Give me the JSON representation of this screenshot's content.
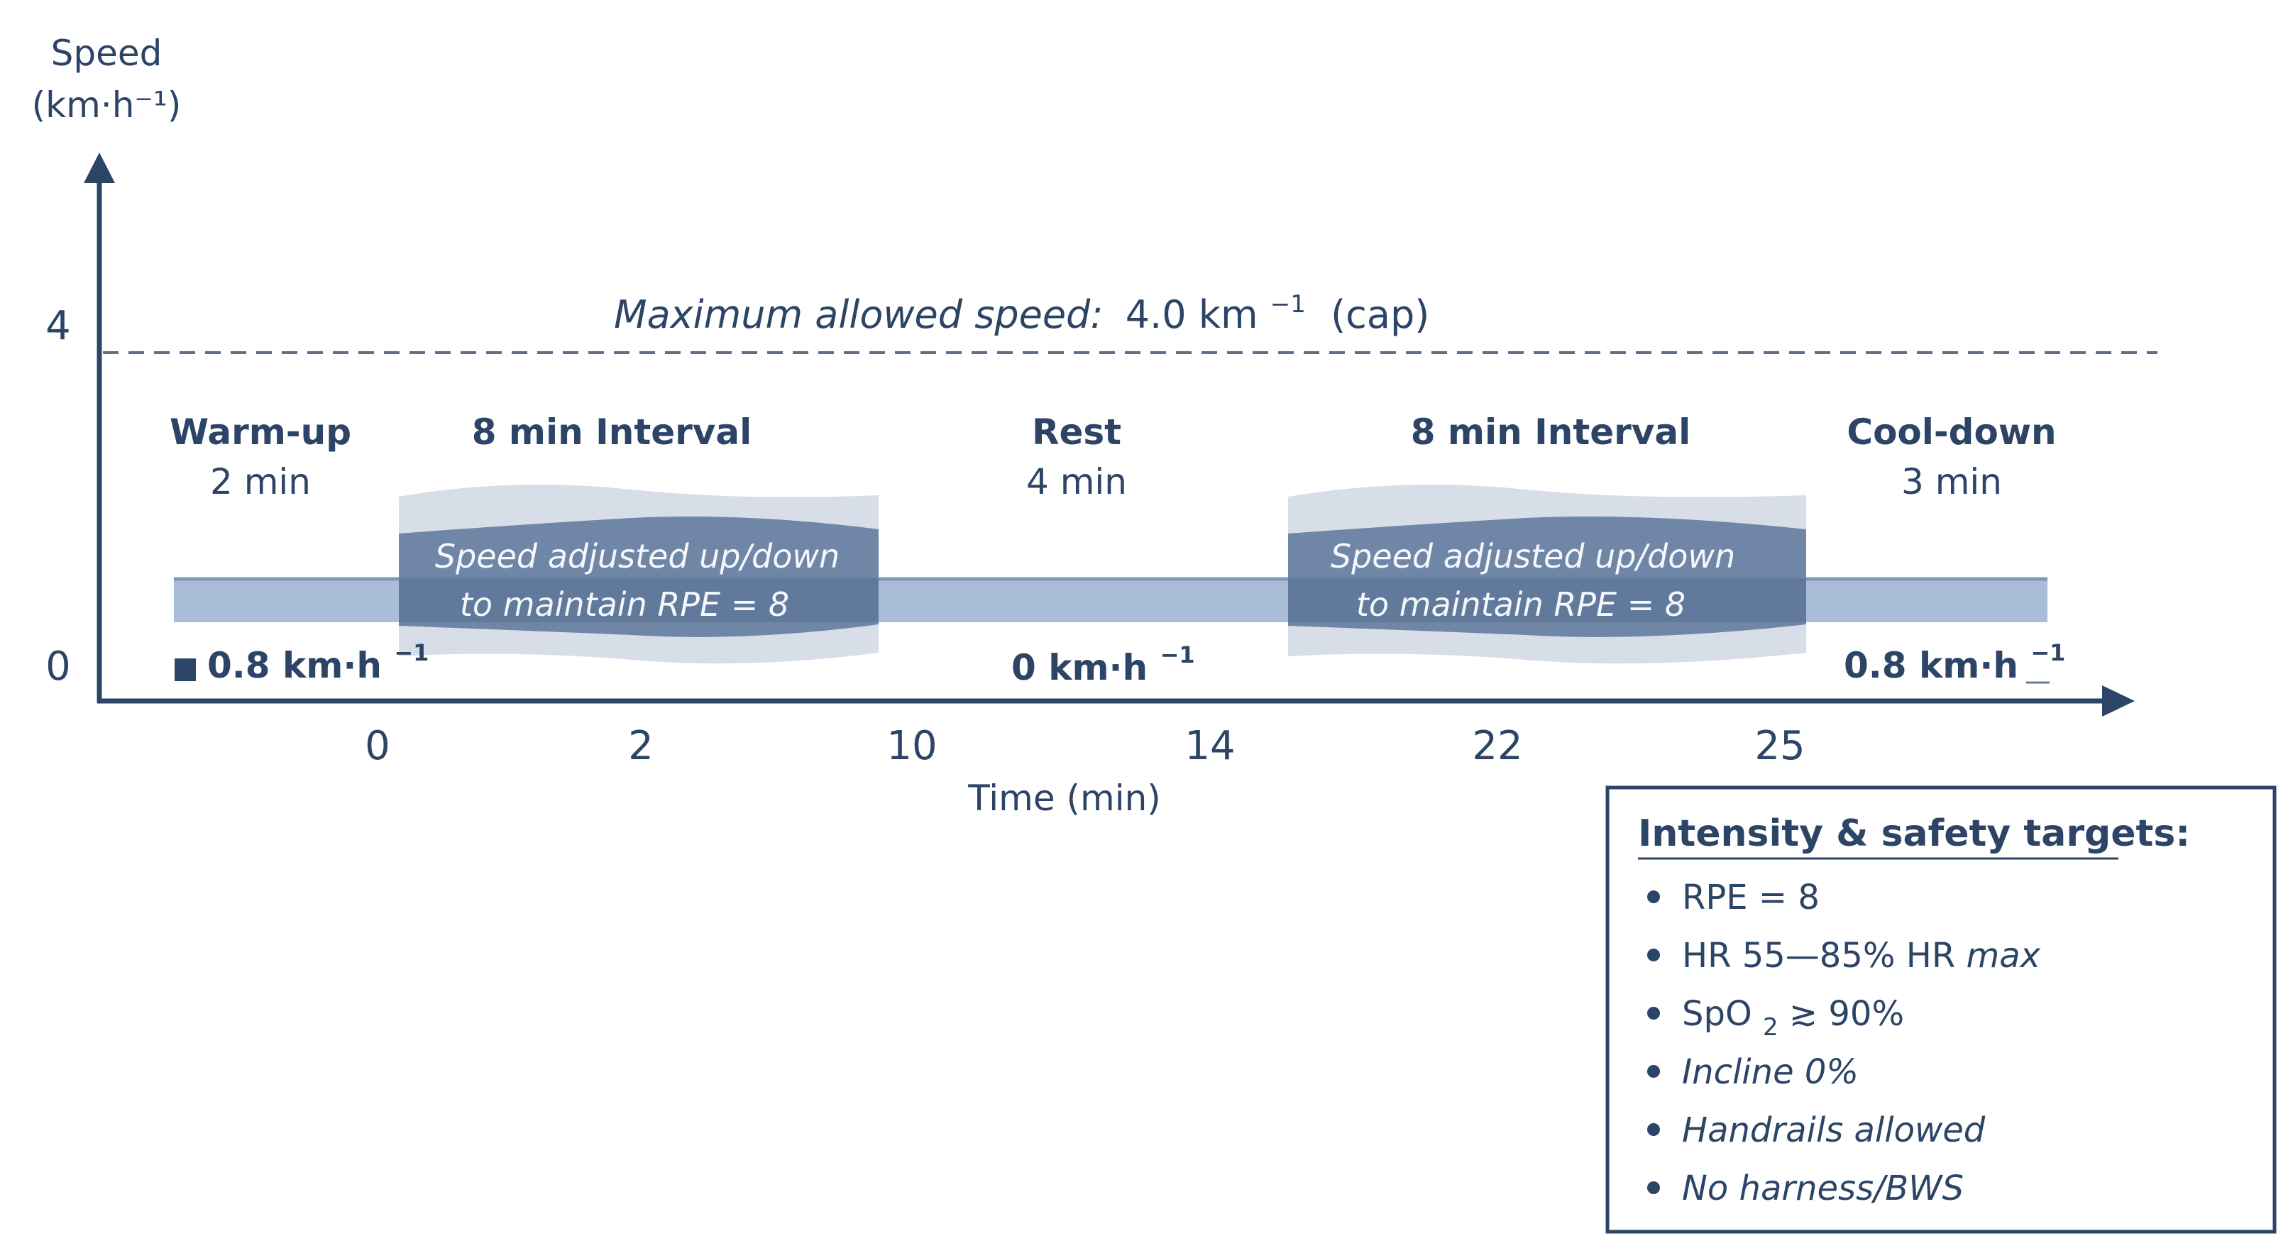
{
  "y_axis": {
    "label_line1": "Speed",
    "label_line2": "(km·h⁻¹)",
    "ticks": [
      {
        "value": 0,
        "label": "0"
      },
      {
        "value": 4,
        "label": "4"
      }
    ]
  },
  "x_axis": {
    "label": "Time (min)",
    "ticks": [
      "0",
      "2",
      "10",
      "14",
      "22",
      "25"
    ]
  },
  "cap_line": {
    "text_italic": "Maximum allowed speed:",
    "text_value": "4.0 km",
    "text_sup": "−1",
    "text_tail": "(cap)"
  },
  "phases": [
    {
      "title": "Warm-up",
      "duration": "2 min",
      "speed": "0.8 km·h",
      "speed_sup": "−1"
    },
    {
      "title": "8 min Interval",
      "band_line1": "Speed adjusted up/down",
      "band_line2": "to maintain RPE = 8"
    },
    {
      "title": "Rest",
      "duration": "4 min",
      "speed": "0 km·h",
      "speed_sup": "−1"
    },
    {
      "title": "8 min Interval",
      "band_line1": "Speed adjusted up/down",
      "band_line2": "to maintain RPE = 8"
    },
    {
      "title": "Cool-down",
      "duration": "3 min",
      "speed": "0.8 km·h",
      "speed_sup": "−1"
    }
  ],
  "legend": {
    "title": "Intensity & safety targets:",
    "items": [
      {
        "text": "RPE = 8"
      },
      {
        "text": "HR 55—85% HR",
        "tail_italic": "max"
      },
      {
        "text": "SpO",
        "sub": "2",
        "tail": " ≳ 90%"
      },
      {
        "text": "Incline 0%"
      },
      {
        "text": "Handrails allowed"
      },
      {
        "text": "No harness/BWS"
      }
    ]
  },
  "colors": {
    "axis": "#2c4466",
    "baseline_band": "#a9bdd8",
    "interval_halo": "#d7dee8",
    "interval_core": "#6f86a6",
    "text": "#2c4466"
  }
}
